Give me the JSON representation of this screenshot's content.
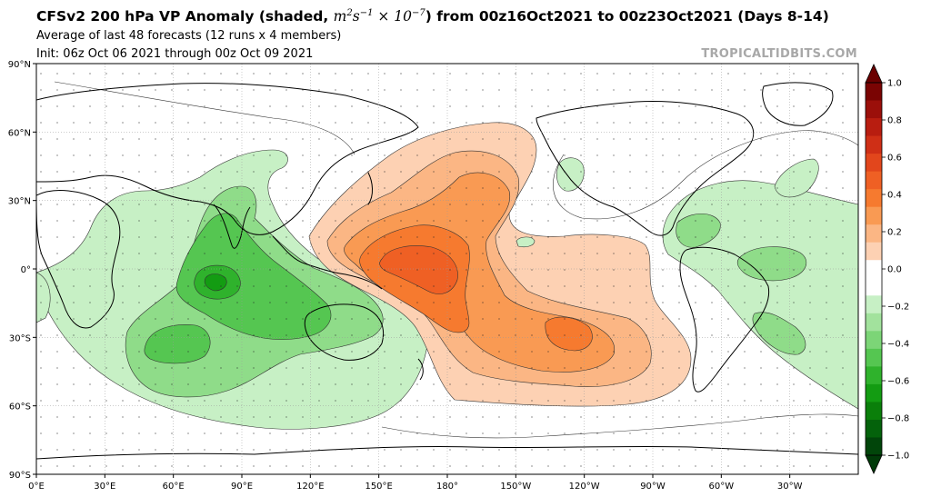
{
  "header": {
    "title_prefix": "CFSv2 200 hPa VP Anomaly (shaded, ",
    "title_math_base": "m",
    "title_math_exp1": "2",
    "title_math_mid": "s",
    "title_math_exp2": "−1",
    "title_math_times": " × 10",
    "title_math_exp3": "−7",
    "title_suffix": ") from 00z16Oct2021 to 00z23Oct2021 (Days 8-14)",
    "subtitle1": "Average of last 48 forecasts (12 runs x 4 members)",
    "subtitle2": "Init: 06z Oct 06 2021 through 00z Oct 09 2021",
    "watermark": "TROPICALTIDBITS.COM"
  },
  "map": {
    "projection": "equirectangular, 0°E centered",
    "lon_ticks": [
      "0°E",
      "30°E",
      "60°E",
      "90°E",
      "120°E",
      "150°E",
      "180°",
      "150°W",
      "120°W",
      "90°W",
      "60°W",
      "30°W"
    ],
    "lat_ticks": [
      "90°N",
      "60°N",
      "30°N",
      "0°",
      "30°S",
      "60°S",
      "90°S"
    ],
    "positive_anomaly_color": "#e8601c",
    "negative_anomaly_color": "#3cb44b"
  },
  "colorbar": {
    "labels": [
      "1.0",
      "0.8",
      "0.6",
      "0.4",
      "0.2",
      "0.0",
      "−0.2",
      "−0.4",
      "−0.6",
      "−0.8",
      "−1.0"
    ],
    "colors": [
      "#7a0403",
      "#9b0f0a",
      "#b81d10",
      "#cf2f16",
      "#e2461c",
      "#ef6024",
      "#f67a2f",
      "#f99a53",
      "#fbb684",
      "#fdd1b3",
      "#ffffff",
      "#ffffff",
      "#c7f0c5",
      "#a2e29d",
      "#7cd577",
      "#55c651",
      "#2fb22c",
      "#139c12",
      "#0a7f0a",
      "#04620b",
      "#01450a"
    ]
  }
}
